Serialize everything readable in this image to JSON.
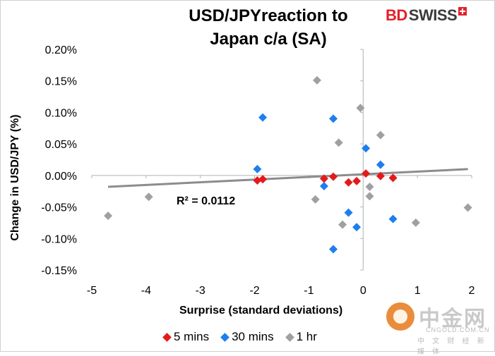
{
  "title": "USD/JPYreaction to\nJapan c/a (SA)",
  "brand": {
    "left": "BD",
    "right": "SWISS"
  },
  "watermark": {
    "cn": "中金网",
    "url": "CNGOLD.COM.CN",
    "sub": "中 文 财 经 新 媒 体"
  },
  "colors": {
    "five_mins": "#e31a1c",
    "thirty_mins": "#1e7ef0",
    "one_hr": "#a0a0a0",
    "trend": "#8c8c8c"
  },
  "chart_data": {
    "type": "scatter",
    "xlabel": "Surprise (standard deviations)",
    "ylabel": "Change in USD/JPY  (%)",
    "xlim": [
      -5,
      2
    ],
    "ylim": [
      -0.15,
      0.2
    ],
    "x_ticks": [
      "-5",
      "-4",
      "-3",
      "-2",
      "-1",
      "0",
      "1",
      "2"
    ],
    "y_ticks": [
      "0.20%",
      "0.15%",
      "0.10%",
      "0.05%",
      "0.00%",
      "-0.05%",
      "-0.10%",
      "-0.15%"
    ],
    "legend_position": "bottom",
    "annotation": "R² = 0.0112",
    "trendline": {
      "x": [
        -4.7,
        1.93
      ],
      "y": [
        -0.018,
        0.01
      ]
    },
    "series": [
      {
        "name": "5 mins",
        "color": "#e31a1c",
        "points": [
          [
            -1.95,
            -0.008
          ],
          [
            -1.85,
            -0.006
          ],
          [
            -0.72,
            -0.005
          ],
          [
            -0.55,
            -0.002
          ],
          [
            -0.27,
            -0.011
          ],
          [
            -0.12,
            -0.009
          ],
          [
            0.05,
            0.003
          ],
          [
            0.32,
            -0.001
          ],
          [
            0.55,
            -0.004
          ]
        ]
      },
      {
        "name": "30 mins",
        "color": "#1e7ef0",
        "points": [
          [
            -1.95,
            0.01
          ],
          [
            -1.85,
            0.092
          ],
          [
            -0.55,
            0.09
          ],
          [
            -0.72,
            -0.017
          ],
          [
            -0.27,
            -0.059
          ],
          [
            -0.12,
            -0.082
          ],
          [
            -0.55,
            -0.117
          ],
          [
            0.05,
            0.043
          ],
          [
            0.32,
            0.017
          ],
          [
            0.55,
            -0.069
          ]
        ]
      },
      {
        "name": "1 hr",
        "color": "#a0a0a0",
        "points": [
          [
            -4.7,
            -0.064
          ],
          [
            -3.95,
            -0.034
          ],
          [
            -0.85,
            0.151
          ],
          [
            -0.88,
            -0.038
          ],
          [
            -0.45,
            0.052
          ],
          [
            -0.38,
            -0.078
          ],
          [
            -0.05,
            0.107
          ],
          [
            0.32,
            0.064
          ],
          [
            0.12,
            -0.018
          ],
          [
            0.12,
            -0.033
          ],
          [
            0.97,
            -0.075
          ],
          [
            1.93,
            -0.051
          ]
        ]
      }
    ]
  }
}
